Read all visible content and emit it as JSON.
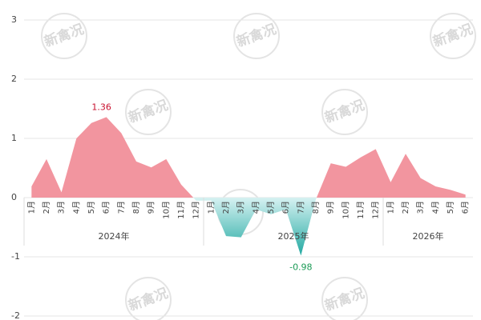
{
  "chart_data": {
    "type": "area",
    "categories": [
      "1月",
      "2月",
      "3月",
      "4月",
      "5月",
      "6月",
      "7月",
      "8月",
      "9月",
      "10月",
      "11月",
      "12月",
      "1月",
      "2月",
      "3月",
      "4月",
      "5月",
      "6月",
      "7月",
      "8月",
      "9月",
      "10月",
      "11月",
      "12月",
      "1月",
      "2月",
      "3月",
      "4月",
      "5月",
      "6月"
    ],
    "groups": [
      {
        "name": "2024年",
        "size": 12
      },
      {
        "name": "2025年",
        "size": 12
      },
      {
        "name": "2026年",
        "size": 6
      }
    ],
    "values": [
      0.19,
      0.65,
      0.09,
      1.0,
      1.26,
      1.36,
      1.09,
      0.61,
      0.51,
      0.65,
      0.22,
      -0.05,
      -0.05,
      -0.65,
      -0.67,
      -0.2,
      -0.28,
      -0.2,
      -0.98,
      -0.03,
      0.58,
      0.52,
      0.68,
      0.82,
      0.26,
      0.74,
      0.33,
      0.19,
      0.13,
      0.05
    ],
    "positive_color": "#f2959f",
    "negative_color_light": "#d6f2f2",
    "negative_color_dark": "#1fa8a0",
    "label_extremes": true,
    "max_label_color": "#c8102e",
    "min_label_color": "#1a9a55",
    "ylim": [
      -2,
      3
    ],
    "yticks": [
      -2,
      -1,
      0,
      1,
      2,
      3
    ],
    "grid": true,
    "watermark": "新禽况"
  }
}
